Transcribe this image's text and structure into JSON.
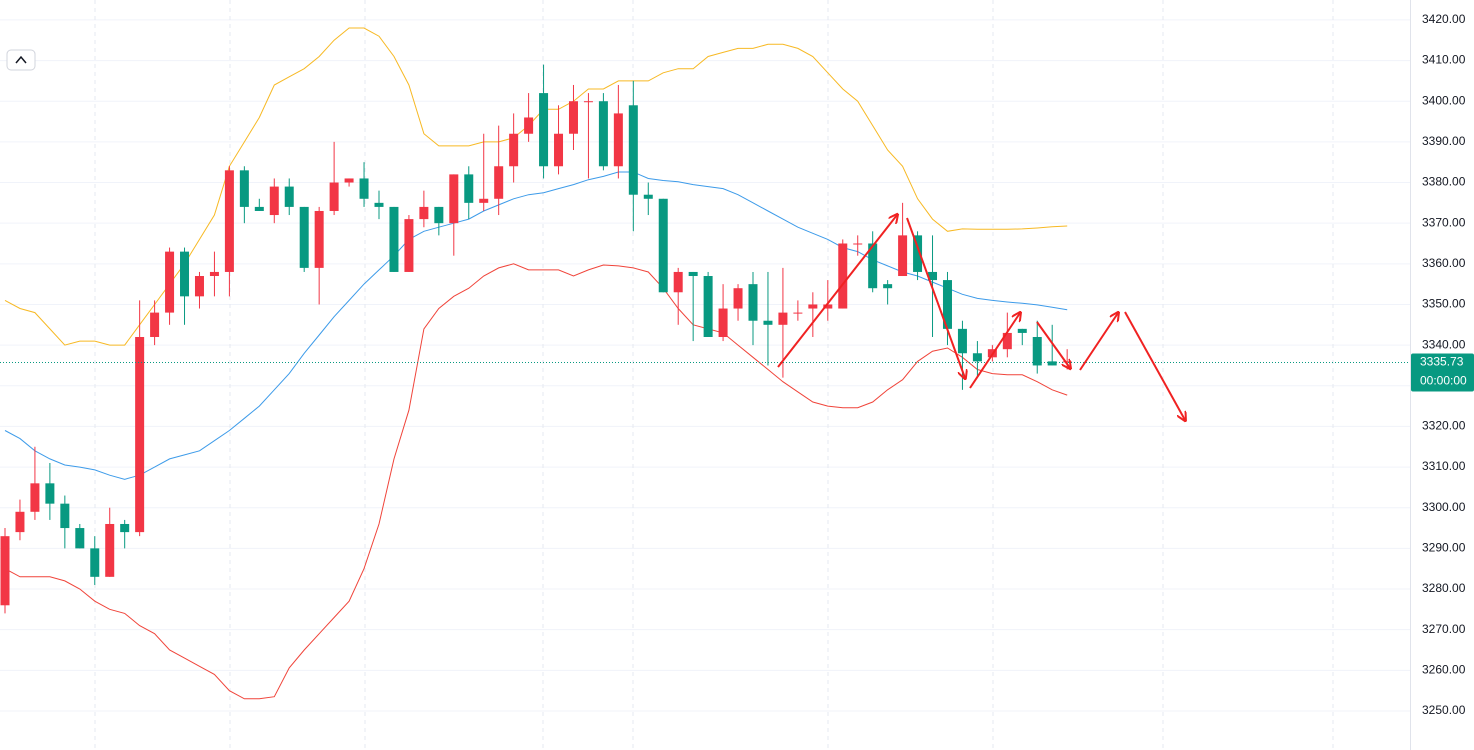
{
  "chart_data": {
    "type": "candlestick",
    "up_color": "#f23645",
    "down_color": "#089981",
    "open": [
      3276,
      3294,
      3299,
      3306,
      3301,
      3295,
      3290,
      3283,
      3296,
      3294,
      3342,
      3348,
      3363,
      3352,
      3357,
      3358,
      3383,
      3374,
      3372,
      3379,
      3374,
      3359,
      3373,
      3380,
      3381,
      3375,
      3374,
      3358,
      3371,
      3374,
      3370,
      3382,
      3375,
      3376,
      3384,
      3392,
      3402,
      3384,
      3392,
      3400,
      3400,
      3384,
      3399,
      3377,
      3376,
      3353,
      3358,
      3357,
      3342,
      3349,
      3355,
      3346,
      3345,
      3348,
      3349,
      3349,
      3349,
      3365,
      3365,
      3355,
      3357,
      3367,
      3358,
      3356,
      3344,
      3338,
      3337,
      3339,
      3344,
      3342,
      3336,
      3336
    ],
    "high": [
      3295,
      3302,
      3315,
      3311,
      3303,
      3296,
      3293,
      3300,
      3297,
      3351,
      3351,
      3364,
      3364,
      3358,
      3363,
      3384,
      3384,
      3376,
      3381,
      3381,
      3374,
      3374,
      3390,
      3381,
      3385,
      3378,
      3374,
      3372,
      3378,
      3374,
      3382,
      3384,
      3392,
      3394,
      3397,
      3402,
      3409,
      3399,
      3404,
      3402,
      3402,
      3404,
      3405,
      3380,
      3376,
      3359,
      3358,
      3358,
      3355,
      3355,
      3358,
      3358,
      3359,
      3351,
      3353,
      3356,
      3366,
      3367,
      3368,
      3356,
      3375,
      3368,
      3367,
      3358,
      3346,
      3341,
      3340,
      3348,
      3344,
      3346,
      3345,
      3339
    ],
    "low": [
      3274,
      3292,
      3297,
      3297,
      3290,
      3290,
      3281,
      3283,
      3290,
      3293,
      3340,
      3345,
      3345,
      3349,
      3352,
      3352,
      3370,
      3373,
      3370,
      3372,
      3358,
      3350,
      3372,
      3379,
      3374,
      3371,
      3358,
      3358,
      3369,
      3367,
      3362,
      3371,
      3373,
      3372,
      3380,
      3390,
      3381,
      3382,
      3388,
      3381,
      3383,
      3381,
      3368,
      3372,
      3353,
      3345,
      3341,
      3342,
      3341,
      3346,
      3340,
      3335,
      3332,
      3346,
      3342,
      3346,
      3349,
      3362,
      3353,
      3350,
      3357,
      3356,
      3342,
      3340,
      3329,
      3332,
      3336,
      3337,
      3340,
      3333,
      3335,
      3334
    ],
    "close": [
      3293,
      3299,
      3306,
      3301,
      3295,
      3290,
      3283,
      3296,
      3294,
      3342,
      3348,
      3363,
      3352,
      3357,
      3358,
      3383,
      3374,
      3373,
      3379,
      3374,
      3359,
      3373,
      3380,
      3381,
      3376,
      3374,
      3358,
      3371,
      3374,
      3370,
      3382,
      3375,
      3376,
      3384,
      3392,
      3396,
      3384,
      3392,
      3400,
      3400,
      3384,
      3397,
      3377,
      3376,
      3353,
      3358,
      3357,
      3342,
      3349,
      3354,
      3346,
      3345,
      3348,
      3348,
      3350,
      3350,
      3365,
      3365,
      3354,
      3354,
      3367,
      3358,
      3356,
      3344,
      3338,
      3336,
      3339,
      3343,
      3343,
      3335,
      3335,
      3336
    ],
    "bands": [
      {
        "color": "#f7b924",
        "values": [
          3351,
          3349,
          3348,
          3344,
          3340,
          3341,
          3341,
          3340,
          3340,
          3345,
          3350,
          3355,
          3360,
          3366,
          3372,
          3384,
          3390,
          3396,
          3404,
          3406,
          3408,
          3411,
          3415,
          3418,
          3418,
          3416,
          3411,
          3404,
          3392,
          3389,
          3389,
          3389,
          3390,
          3390,
          3391,
          3394,
          3398,
          3398,
          3400,
          3403,
          3403,
          3405,
          3405,
          3405,
          3407,
          3408,
          3408,
          3411,
          3412,
          3413,
          3413,
          3414,
          3414,
          3413,
          3411,
          3407,
          3403,
          3400,
          3394,
          3388,
          3384,
          3376,
          3371,
          3368,
          3368.6,
          3368.5,
          3368.5,
          3368.5,
          3368.6,
          3368.8,
          3369.1,
          3369.3
        ]
      },
      {
        "color": "#3d9be9",
        "values": [
          3319,
          3317,
          3314,
          3312,
          3310.5,
          3310,
          3309.3,
          3308,
          3307,
          3308,
          3310,
          3312,
          3313,
          3314,
          3316.5,
          3319,
          3322,
          3325,
          3329,
          3333,
          3338,
          3342.5,
          3347,
          3351,
          3355,
          3358.5,
          3362,
          3366,
          3368,
          3369,
          3370,
          3371,
          3373,
          3374.5,
          3376,
          3377,
          3377.5,
          3378.5,
          3379.5,
          3380.7,
          3381.5,
          3382.6,
          3382.6,
          3381,
          3380.5,
          3380.2,
          3379.5,
          3379,
          3378.5,
          3377,
          3375,
          3373,
          3371,
          3369,
          3367.5,
          3366,
          3364,
          3363,
          3361,
          3359.5,
          3358,
          3357,
          3355.5,
          3354,
          3352.5,
          3351.5,
          3351,
          3350.6,
          3350.3,
          3349.9,
          3349.3,
          3348.7
        ]
      },
      {
        "color": "#f0443a",
        "values": [
          3285,
          3283,
          3283,
          3283,
          3282,
          3280,
          3277,
          3275,
          3274,
          3271,
          3269,
          3265,
          3263,
          3261,
          3259,
          3255,
          3253,
          3253,
          3253.5,
          3260.6,
          3265,
          3269,
          3273,
          3277,
          3285,
          3296,
          3312,
          3324,
          3344,
          3349,
          3352,
          3354,
          3357,
          3359,
          3360,
          3358.5,
          3358.5,
          3358.5,
          3357,
          3358.5,
          3359.7,
          3359.5,
          3359,
          3358,
          3354,
          3349,
          3345,
          3344,
          3343,
          3340,
          3337,
          3334,
          3331,
          3328.5,
          3326,
          3325,
          3324.6,
          3324.6,
          3326,
          3329,
          3331.5,
          3336,
          3338.5,
          3339.3,
          3337,
          3334,
          3333,
          3332.7,
          3332.7,
          3331,
          3329,
          3327.7
        ]
      }
    ],
    "last_price": 3335.73,
    "countdown": "00:00:00",
    "ylim": [
      3240.4,
      3424.9
    ],
    "yticks": [
      {
        "value": 3250,
        "label": "3250.00"
      },
      {
        "value": 3260,
        "label": "3260.00"
      },
      {
        "value": 3270,
        "label": "3270.00"
      },
      {
        "value": 3280,
        "label": "3280.00"
      },
      {
        "value": 3290,
        "label": "3290.00"
      },
      {
        "value": 3300,
        "label": "3300.00"
      },
      {
        "value": 3310,
        "label": "3310.00"
      },
      {
        "value": 3320,
        "label": "3320.00"
      },
      {
        "value": 3330,
        "label": "3330.00"
      },
      {
        "value": 3340,
        "label": "3340.00"
      },
      {
        "value": 3350,
        "label": "3350.00"
      },
      {
        "value": 3360,
        "label": "3360.00"
      },
      {
        "value": 3370,
        "label": "3370.00"
      },
      {
        "value": 3380,
        "label": "3380.00"
      },
      {
        "value": 3390,
        "label": "3390.00"
      },
      {
        "value": 3400,
        "label": "3400.00"
      },
      {
        "value": 3410,
        "label": "3410.00"
      },
      {
        "value": 3420,
        "label": "3420.00"
      }
    ],
    "grid": true
  }
}
